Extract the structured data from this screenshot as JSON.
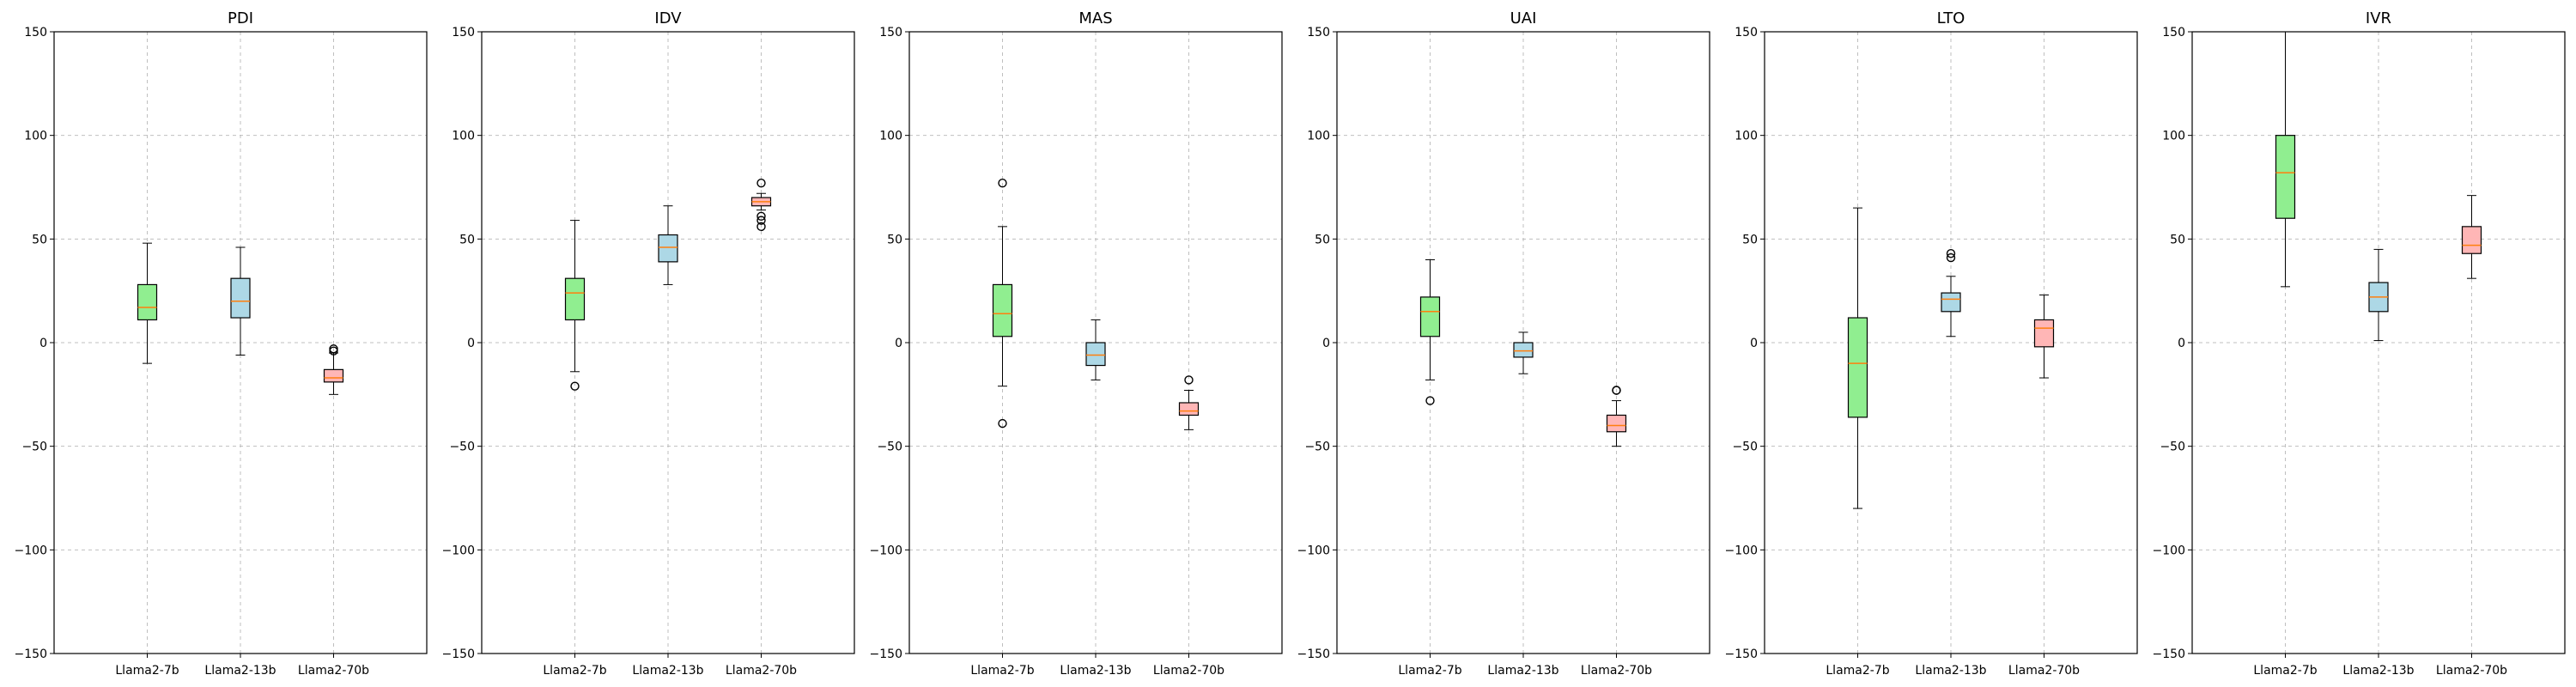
{
  "chart_data": [
    {
      "type": "box",
      "title": "PDI",
      "ylim": [
        -150,
        150
      ],
      "yticks": [
        -150,
        -100,
        -50,
        0,
        50,
        100,
        150
      ],
      "grid": true,
      "categories": [
        "Llama2-7b",
        "Llama2-13b",
        "Llama2-70b"
      ],
      "box_colors": [
        "#90EE90",
        "#ADD8E6",
        "#FFB6B6"
      ],
      "boxes": [
        {
          "whisker_low": -10,
          "q1": 11,
          "median": 17,
          "q3": 28,
          "whisker_high": 48,
          "outliers": []
        },
        {
          "whisker_low": -6,
          "q1": 12,
          "median": 20,
          "q3": 31,
          "whisker_high": 46,
          "outliers": []
        },
        {
          "whisker_low": -25,
          "q1": -19,
          "median": -17,
          "q3": -13,
          "whisker_high": -5,
          "outliers": [
            -4,
            -3
          ]
        }
      ]
    },
    {
      "type": "box",
      "title": "IDV",
      "ylim": [
        -150,
        150
      ],
      "yticks": [
        -150,
        -100,
        -50,
        0,
        50,
        100,
        150
      ],
      "grid": true,
      "categories": [
        "Llama2-7b",
        "Llama2-13b",
        "Llama2-70b"
      ],
      "box_colors": [
        "#90EE90",
        "#ADD8E6",
        "#FFB6B6"
      ],
      "boxes": [
        {
          "whisker_low": -14,
          "q1": 11,
          "median": 24,
          "q3": 31,
          "whisker_high": 59,
          "outliers": [
            -21
          ]
        },
        {
          "whisker_low": 28,
          "q1": 39,
          "median": 46,
          "q3": 52,
          "whisker_high": 66,
          "outliers": []
        },
        {
          "whisker_low": 64,
          "q1": 66,
          "median": 68,
          "q3": 70,
          "whisker_high": 72,
          "outliers": [
            77,
            61,
            59,
            56
          ]
        }
      ]
    },
    {
      "type": "box",
      "title": "MAS",
      "ylim": [
        -150,
        150
      ],
      "yticks": [
        -150,
        -100,
        -50,
        0,
        50,
        100,
        150
      ],
      "grid": true,
      "categories": [
        "Llama2-7b",
        "Llama2-13b",
        "Llama2-70b"
      ],
      "box_colors": [
        "#90EE90",
        "#ADD8E6",
        "#FFB6B6"
      ],
      "boxes": [
        {
          "whisker_low": -21,
          "q1": 3,
          "median": 14,
          "q3": 28,
          "whisker_high": 56,
          "outliers": [
            77,
            -39
          ]
        },
        {
          "whisker_low": -18,
          "q1": -11,
          "median": -6,
          "q3": 0,
          "whisker_high": 11,
          "outliers": []
        },
        {
          "whisker_low": -42,
          "q1": -35,
          "median": -33,
          "q3": -29,
          "whisker_high": -23,
          "outliers": [
            -18
          ]
        }
      ]
    },
    {
      "type": "box",
      "title": "UAI",
      "ylim": [
        -150,
        150
      ],
      "yticks": [
        -150,
        -100,
        -50,
        0,
        50,
        100,
        150
      ],
      "grid": true,
      "categories": [
        "Llama2-7b",
        "Llama2-13b",
        "Llama2-70b"
      ],
      "box_colors": [
        "#90EE90",
        "#ADD8E6",
        "#FFB6B6"
      ],
      "boxes": [
        {
          "whisker_low": -18,
          "q1": 3,
          "median": 15,
          "q3": 22,
          "whisker_high": 40,
          "outliers": [
            -28
          ]
        },
        {
          "whisker_low": -15,
          "q1": -7,
          "median": -4,
          "q3": 0,
          "whisker_high": 5,
          "outliers": []
        },
        {
          "whisker_low": -50,
          "q1": -43,
          "median": -40,
          "q3": -35,
          "whisker_high": -28,
          "outliers": [
            -23,
            -23
          ]
        }
      ]
    },
    {
      "type": "box",
      "title": "LTO",
      "ylim": [
        -150,
        150
      ],
      "yticks": [
        -150,
        -100,
        -50,
        0,
        50,
        100,
        150
      ],
      "grid": true,
      "categories": [
        "Llama2-7b",
        "Llama2-13b",
        "Llama2-70b"
      ],
      "box_colors": [
        "#90EE90",
        "#ADD8E6",
        "#FFB6B6"
      ],
      "boxes": [
        {
          "whisker_low": -80,
          "q1": -36,
          "median": -10,
          "q3": 12,
          "whisker_high": 65,
          "outliers": []
        },
        {
          "whisker_low": 3,
          "q1": 15,
          "median": 21,
          "q3": 24,
          "whisker_high": 32,
          "outliers": [
            43,
            41
          ]
        },
        {
          "whisker_low": -17,
          "q1": -2,
          "median": 7,
          "q3": 11,
          "whisker_high": 23,
          "outliers": []
        }
      ]
    },
    {
      "type": "box",
      "title": "IVR",
      "ylim": [
        -150,
        150
      ],
      "yticks": [
        -150,
        -100,
        -50,
        0,
        50,
        100,
        150
      ],
      "grid": true,
      "categories": [
        "Llama2-7b",
        "Llama2-13b",
        "Llama2-70b"
      ],
      "box_colors": [
        "#90EE90",
        "#ADD8E6",
        "#FFB6B6"
      ],
      "boxes": [
        {
          "whisker_low": 27,
          "q1": 60,
          "median": 82,
          "q3": 100,
          "whisker_high": 150,
          "outliers": []
        },
        {
          "whisker_low": 1,
          "q1": 15,
          "median": 22,
          "q3": 29,
          "whisker_high": 45,
          "outliers": []
        },
        {
          "whisker_low": 31,
          "q1": 43,
          "median": 47,
          "q3": 56,
          "whisker_high": 71,
          "outliers": []
        }
      ]
    }
  ]
}
